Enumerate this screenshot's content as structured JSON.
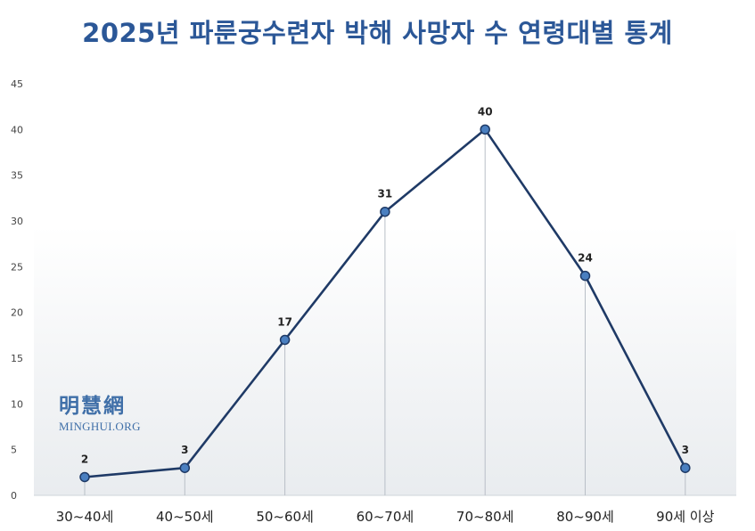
{
  "chart_data": {
    "type": "line",
    "title": "2025년 파룬궁수련자 박해 사망자 수 연령대별 통계",
    "categories": [
      "30~40세",
      "40~50세",
      "50~60세",
      "60~70세",
      "70~80세",
      "80~90세",
      "90세 이상"
    ],
    "series": [
      {
        "values": [
          2,
          3,
          17,
          31,
          40,
          24,
          3
        ]
      }
    ],
    "yticks": [
      0,
      5,
      10,
      15,
      20,
      25,
      30,
      35,
      40,
      45
    ],
    "ylim": [
      0,
      45
    ],
    "xlabel": "",
    "ylabel": "",
    "grid": false,
    "data_labels": true,
    "line_color": "#1f3a66",
    "marker_color": "#4a7fc0",
    "drop_line_color": "#b9bfc7"
  },
  "watermark": {
    "chinese": "明慧網",
    "english": "MINGHUI.ORG"
  }
}
